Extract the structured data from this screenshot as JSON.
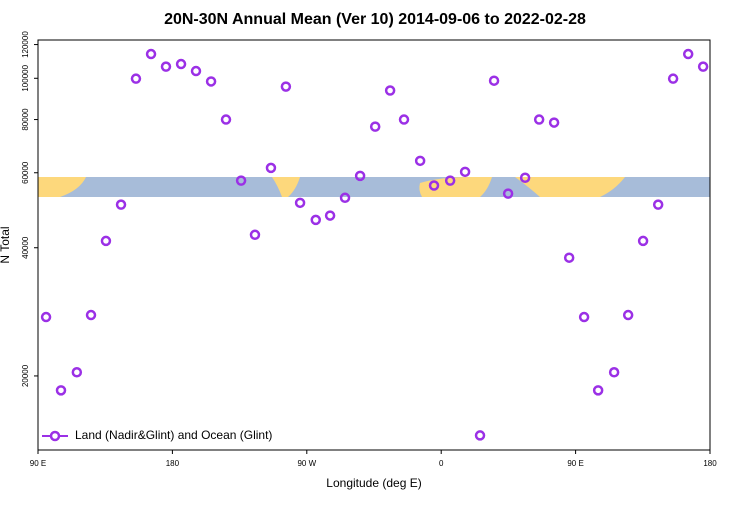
{
  "chart_data": {
    "type": "scatter",
    "title": "20N-30N Annual Mean (Ver 10)   2014-09-06 to 2022-02-28",
    "x_label": "Longitude (deg E)",
    "y_label": "N Total",
    "log_y": true,
    "grid": false,
    "legend": "bottom-left",
    "x": [
      95.4,
      105.4,
      116,
      125.5,
      135.5,
      145.6,
      155.6,
      165.7,
      175.7,
      185.8,
      195.8,
      205.9,
      215.9,
      226,
      235.3,
      246,
      256,
      265.5,
      276,
      285.6,
      295.6,
      305.7,
      315.8,
      325.8,
      335.1,
      345.9,
      355.2,
      366,
      376,
      386,
      395.4,
      404.8,
      416.2,
      425.6,
      435.6,
      445.7,
      455.7,
      465.1,
      475.8,
      485.2,
      495.2,
      505.3,
      515.3,
      525.4,
      535.4
    ],
    "series": [
      {
        "name": "Land (Nadir&Glint) and Ocean (Glint)",
        "color": "#9b30e6",
        "values": [
          27500,
          18500,
          20400,
          27800,
          41500,
          50500,
          99800,
          114000,
          106500,
          108000,
          104000,
          98300,
          80000,
          57500,
          42900,
          61600,
          95600,
          51000,
          46500,
          47600,
          52400,
          59000,
          77000,
          93600,
          80000,
          64000,
          56000,
          57500,
          60300,
          14500,
          98700,
          53600,
          58400,
          80000,
          78700,
          37900,
          27500,
          18500,
          20400,
          27800,
          41500,
          50500,
          99800,
          114000,
          106500
        ]
      }
    ],
    "xlim": [
      90,
      540
    ],
    "xticks": [
      {
        "value": 90,
        "label": "90 E"
      },
      {
        "value": 180,
        "label": "180"
      },
      {
        "value": 270,
        "label": "90 W"
      },
      {
        "value": 360,
        "label": "0"
      },
      {
        "value": 450,
        "label": "90 E"
      },
      {
        "value": 540,
        "label": "180"
      }
    ],
    "ylim": [
      13400,
      123000
    ],
    "yticks": [
      20000,
      40000,
      60000,
      80000,
      100000,
      120000
    ]
  }
}
